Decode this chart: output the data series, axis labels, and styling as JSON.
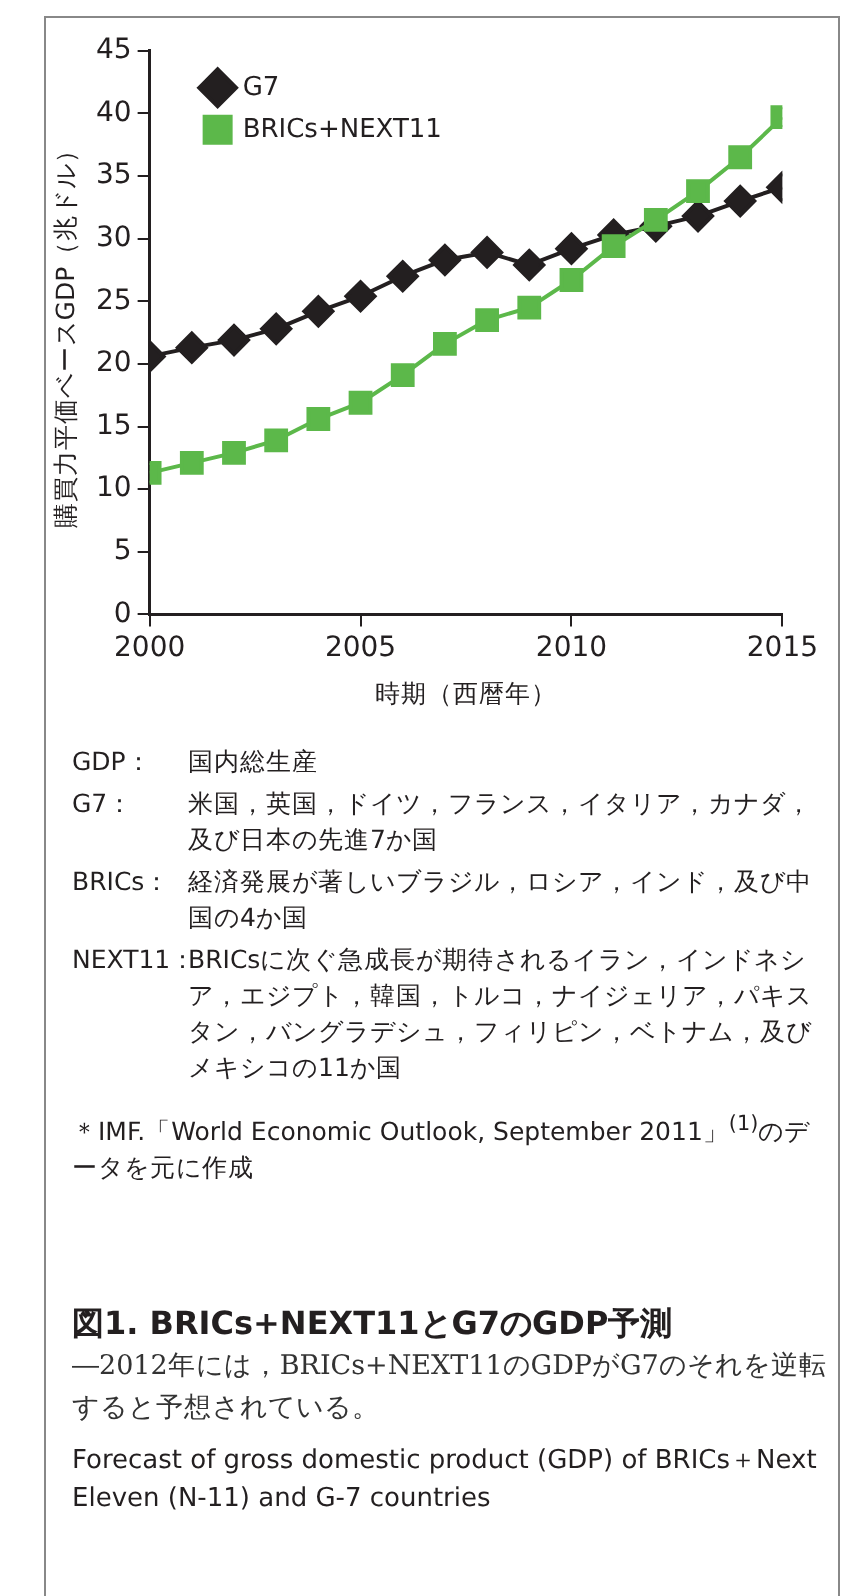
{
  "chart_data": {
    "type": "line",
    "title": "図1. BRICs+NEXT11とG7のGDP予測",
    "subtitle": "―2012年には，BRICs+NEXT11のGDPがG7のそれを逆転すると予想されている。",
    "xlabel": "時期（西暦年）",
    "ylabel": "購買力平価ベースGDP（兆ドル）",
    "x": [
      2000,
      2001,
      2002,
      2003,
      2004,
      2005,
      2006,
      2007,
      2008,
      2009,
      2010,
      2011,
      2012,
      2013,
      2014,
      2015
    ],
    "series": [
      {
        "name": "G7",
        "color": "#231f20",
        "marker": "diamond",
        "values": [
          20.6,
          21.3,
          21.9,
          22.8,
          24.2,
          25.4,
          27.0,
          28.3,
          28.9,
          27.9,
          29.2,
          30.3,
          31.0,
          31.8,
          33.0,
          34.1
        ]
      },
      {
        "name": "BRICs+NEXT11",
        "color": "#5cb84a",
        "marker": "square",
        "values": [
          11.3,
          12.1,
          12.9,
          13.9,
          15.6,
          16.9,
          19.1,
          21.6,
          23.5,
          24.5,
          26.7,
          29.4,
          31.5,
          33.8,
          36.5,
          39.7
        ]
      }
    ],
    "xlim": [
      2000,
      2015
    ],
    "xticks": [
      2000,
      2005,
      2010,
      2015
    ],
    "ylim": [
      0,
      45
    ],
    "yticks": [
      0,
      5,
      10,
      15,
      20,
      25,
      30,
      35,
      40,
      45
    ],
    "grid": false,
    "legend": "top left",
    "line_style": "solid",
    "annotations": [
      "GDP：国内総生産",
      "G7：米国，英国，ドイツ，フランス，イタリア，カナダ，及び日本の先進7か国",
      "BRICs：経済発展が著しいブラジル，ロシア，インド，及び中国の4か国",
      "NEXT11：BRICsに次ぐ急成長が期待されるイラン，インドネシア，エジプト，韓国，トルコ，ナイジェリア，パキスタン，バングラデシュ，フィリピン，ベトナム，及びメキシコの11か国",
      "＊IMF.「World Economic Outlook, September 2011」$^{(1)}$のデータを元に作成",
      "Forecast of gross domestic product (GDP) of BRICs＋Next Eleven (N-11) and G-7 countries"
    ]
  }
}
